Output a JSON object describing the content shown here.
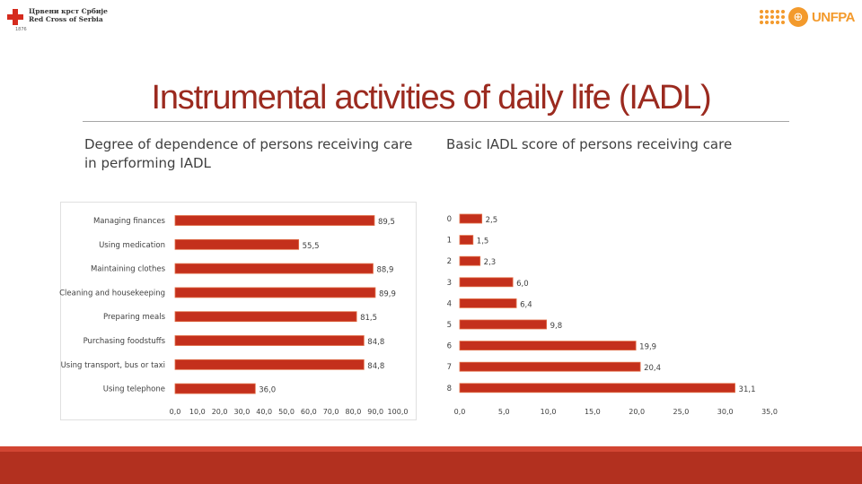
{
  "header": {
    "left_logo_line1": "Црвени крст Србије",
    "left_logo_line2": "Red Cross of Serbia",
    "left_logo_small": "1876",
    "right_logo_text": "UNFPA",
    "right_logo_globe": "⊕"
  },
  "title": "Instrumental activities of daily life (IADL)",
  "left_subtitle": "Degree of dependence of persons receiving care in performing IADL",
  "right_subtitle": "Basic IADL score of persons receiving care",
  "colors": {
    "bar": "#c4301c",
    "bar_edge": "#e26f48",
    "title": "#9b2a1f",
    "footer": "#b2301f"
  },
  "chart_data": [
    {
      "type": "bar",
      "orientation": "horizontal",
      "title": "Degree of dependence of persons receiving care in performing IADL",
      "categories": [
        "Managing finances",
        "Using medication",
        "Maintaining clothes",
        "Cleaning and housekeeping",
        "Preparing meals",
        "Purchasing foodstuffs",
        "Using transport, bus or taxi",
        "Using telephone"
      ],
      "values": [
        89.5,
        55.5,
        88.9,
        89.9,
        81.5,
        84.8,
        84.8,
        36.0
      ],
      "value_labels": [
        "89,5",
        "55,5",
        "88,9",
        "89,9",
        "81,5",
        "84,8",
        "84,8",
        "36,0"
      ],
      "xlim": [
        0,
        100
      ],
      "ticks": [
        0,
        10,
        20,
        30,
        40,
        50,
        60,
        70,
        80,
        90,
        100
      ],
      "tick_labels": [
        "0,0",
        "10,0",
        "20,0",
        "30,0",
        "40,0",
        "50,0",
        "60,0",
        "70,0",
        "80,0",
        "90,0",
        "100,0"
      ]
    },
    {
      "type": "bar",
      "orientation": "horizontal",
      "title": "Basic IADL score of persons receiving care",
      "categories": [
        "0",
        "1",
        "2",
        "3",
        "4",
        "5",
        "6",
        "7",
        "8"
      ],
      "values": [
        2.5,
        1.5,
        2.3,
        6.0,
        6.4,
        9.8,
        19.9,
        20.4,
        31.1
      ],
      "value_labels": [
        "2,5",
        "1,5",
        "2,3",
        "6,0",
        "6,4",
        "9,8",
        "19,9",
        "20,4",
        "31,1"
      ],
      "xlim": [
        0,
        35
      ],
      "ticks": [
        0,
        5,
        10,
        15,
        20,
        25,
        30,
        35
      ],
      "tick_labels": [
        "0,0",
        "5,0",
        "10,0",
        "15,0",
        "20,0",
        "25,0",
        "30,0",
        "35,0"
      ]
    }
  ]
}
